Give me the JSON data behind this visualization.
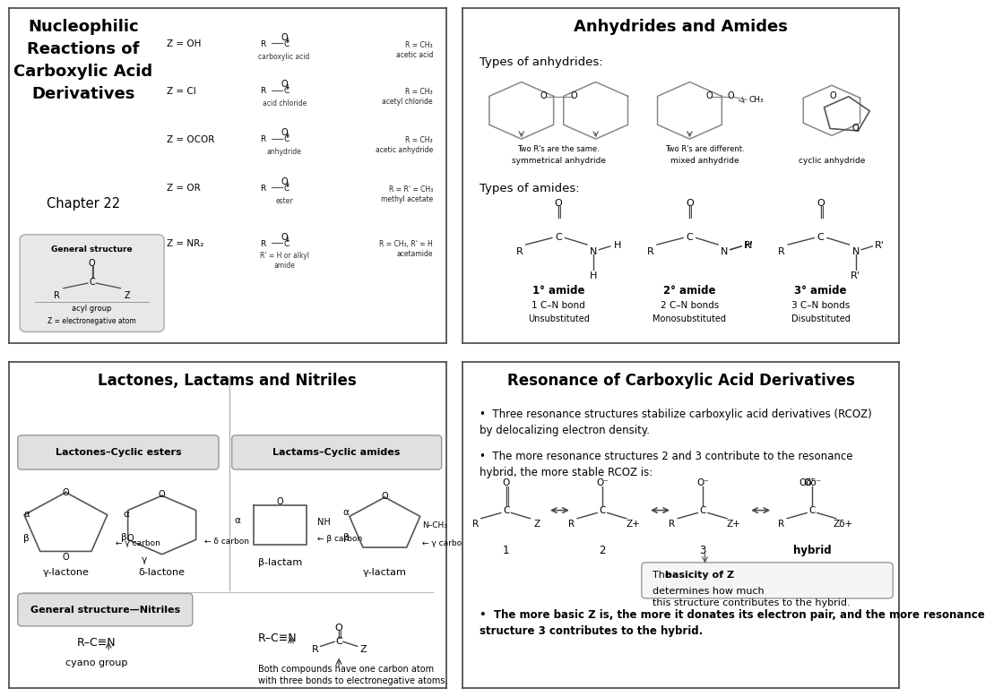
{
  "overall_bg": "#ffffff",
  "panel_border_color": "#555555",
  "panels": {
    "p1": {
      "title": "Nucleophilic\nReactions of\nCarboxylic Acid\nDerivatives",
      "chapter": "Chapter 22",
      "z_rows": [
        {
          "z": "Z = OH",
          "name": "carboxylic acid",
          "example": "R = CH₃\nacetic acid"
        },
        {
          "z": "Z = Cl",
          "name": "acid chloride",
          "example": "R = CH₃\nacetyl chloride"
        },
        {
          "z": "Z = OCOR",
          "name": "anhydride",
          "example": "R = CH₃\nacetic anhydride"
        },
        {
          "z": "Z = OR",
          "name": "ester",
          "example": "R = R' = CH₃\nmethyl acetate"
        },
        {
          "z": "Z = NR₂",
          "name": "R' = H or alkyl\namide",
          "example": "R = CH₃, R' = H\nacetamide"
        }
      ],
      "gen_struct_label": "General structure",
      "acyl_label": "acyl group",
      "z_elec_label": "Z = electronegative atom"
    },
    "p2": {
      "title": "Anhydrides and Amides",
      "anhydrides_header": "Types of anhydrides:",
      "amides_header": "Types of amides:",
      "anhydride_notes": [
        "Two R's are the same.",
        "Two R's are different.",
        ""
      ],
      "anhydride_labels": [
        "symmetrical anhydride",
        "mixed anhydride",
        "cyclic anhydride"
      ],
      "ch3_label": "CH₃",
      "amide_degrees": [
        "1° amide",
        "2° amide",
        "3° amide"
      ],
      "amide_bonds": [
        "1 C–N bond",
        "2 C–N bonds",
        "3 C–N bonds"
      ],
      "amide_subs": [
        "Unsubstituted",
        "Monosubstituted",
        "Disubstituted"
      ]
    },
    "p3": {
      "title": "Lactones, Lactams and Nitriles",
      "lactones_box": "Lactones–Cyclic esters",
      "lactams_box": "Lactams–Cyclic amides",
      "nitriles_box": "General structure—Nitriles",
      "gamma_lactone": "γ-lactone",
      "delta_lactone": "δ-lactone",
      "beta_lactam": "β-lactam",
      "gamma_lactam": "γ-lactam",
      "cyano": "cyano group",
      "nitrile_note": "Both compounds have one carbon atom\nwith three bonds to electronegative atoms."
    },
    "p4": {
      "title": "Resonance of Carboxylic Acid Derivatives",
      "bullet1": "Three resonance structures stabilize carboxylic acid derivatives (RCOZ)\nby delocalizing electron density.",
      "bullet2": "The more resonance structures 2 and 3 contribute to the resonance\nhybrid, the more stable RCOZ is:",
      "box_text1": "The ",
      "box_bold": "basicity of Z",
      "box_text2": " determines how much\nthis structure contributes to the hybrid.",
      "bullet3": "The more basic Z is, the more it donates its electron pair, and the more resonance\nstructure 3 contributes to the hybrid."
    }
  }
}
